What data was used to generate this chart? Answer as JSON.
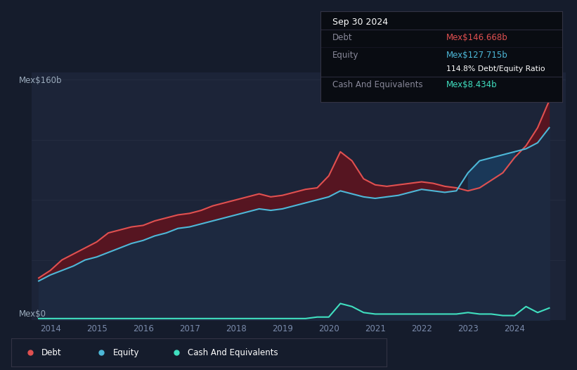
{
  "background_color": "#151c2c",
  "plot_bg_color": "#1c2438",
  "title": "Sep 30 2024",
  "ylabel_top": "Mex$160b",
  "ylabel_bottom": "Mex$0",
  "debt_color": "#e05050",
  "equity_color": "#4db8d8",
  "cash_color": "#40e0c0",
  "annotation": {
    "date": "Sep 30 2024",
    "debt_val": "Mex$146.668b",
    "equity_val": "Mex$127.715b",
    "ratio": "114.8%",
    "cash_val": "Mex$8.434b",
    "debt_color": "#e05050",
    "equity_color": "#4db8d8",
    "cash_color": "#40e0c0"
  },
  "x_years": [
    2013.75,
    2014.0,
    2014.25,
    2014.5,
    2014.75,
    2015.0,
    2015.25,
    2015.5,
    2015.75,
    2016.0,
    2016.25,
    2016.5,
    2016.75,
    2017.0,
    2017.25,
    2017.5,
    2017.75,
    2018.0,
    2018.25,
    2018.5,
    2018.75,
    2019.0,
    2019.25,
    2019.5,
    2019.75,
    2020.0,
    2020.25,
    2020.5,
    2020.75,
    2021.0,
    2021.25,
    2021.5,
    2021.75,
    2022.0,
    2022.25,
    2022.5,
    2022.75,
    2023.0,
    2023.25,
    2023.5,
    2023.75,
    2024.0,
    2024.25,
    2024.5,
    2024.75
  ],
  "debt": [
    28,
    33,
    40,
    44,
    48,
    52,
    58,
    60,
    62,
    63,
    66,
    68,
    70,
    71,
    73,
    76,
    78,
    80,
    82,
    84,
    82,
    83,
    85,
    87,
    88,
    96,
    112,
    106,
    94,
    90,
    89,
    90,
    91,
    92,
    91,
    89,
    88,
    86,
    88,
    93,
    98,
    108,
    116,
    128,
    146
  ],
  "equity": [
    26,
    30,
    33,
    36,
    40,
    42,
    45,
    48,
    51,
    53,
    56,
    58,
    61,
    62,
    64,
    66,
    68,
    70,
    72,
    74,
    73,
    74,
    76,
    78,
    80,
    82,
    86,
    84,
    82,
    81,
    82,
    83,
    85,
    87,
    86,
    85,
    86,
    98,
    106,
    108,
    110,
    112,
    114,
    118,
    128
  ],
  "cash": [
    1,
    1,
    1,
    1,
    1,
    1,
    1,
    1,
    1,
    1,
    1,
    1,
    1,
    1,
    1,
    1,
    1,
    1,
    1,
    1,
    1,
    1,
    1,
    1,
    2,
    2,
    11,
    9,
    5,
    4,
    4,
    4,
    4,
    4,
    4,
    4,
    4,
    5,
    4,
    4,
    3,
    3,
    9,
    5,
    8
  ],
  "xlim": [
    2013.6,
    2025.1
  ],
  "ylim": [
    0,
    165
  ],
  "xticks": [
    2014,
    2015,
    2016,
    2017,
    2018,
    2019,
    2020,
    2021,
    2022,
    2023,
    2024
  ],
  "grid_color": "#252d42",
  "grid_lines_y": [
    0,
    40,
    80,
    120,
    160
  ]
}
